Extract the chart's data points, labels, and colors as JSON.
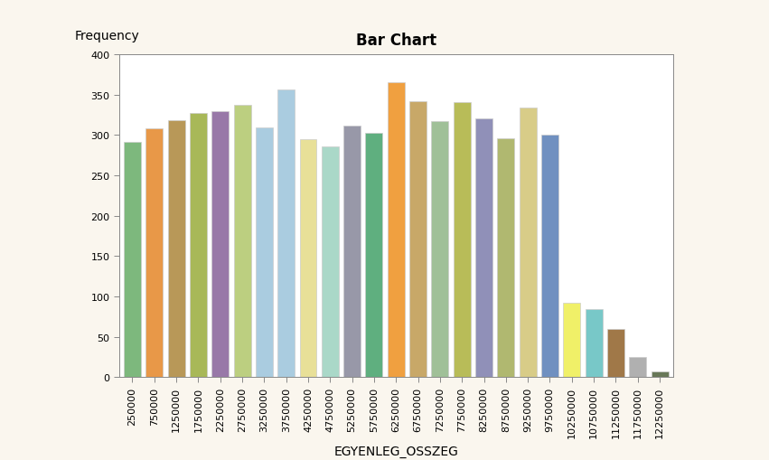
{
  "title": "Bar Chart",
  "xlabel": "EGYENLEG_OSSZEG",
  "ylabel": "Frequency",
  "background_color": "#faf6ee",
  "plot_bg_color": "#ffffff",
  "categories": [
    "250000",
    "750000",
    "1250000",
    "1750000",
    "2250000",
    "2750000",
    "3250000",
    "3750000",
    "4250000",
    "4750000",
    "5250000",
    "5750000",
    "6250000",
    "6750000",
    "7250000",
    "7750000",
    "8250000",
    "8750000",
    "9250000",
    "9750000",
    "10250000",
    "10750000",
    "11250000",
    "11750000",
    "12250000"
  ],
  "values": [
    291,
    308,
    318,
    327,
    330,
    338,
    309,
    357,
    295,
    286,
    312,
    303,
    365,
    342,
    317,
    341,
    321,
    296,
    334,
    301,
    92,
    84,
    60,
    25,
    7
  ],
  "bar_colors": [
    "#7db87d",
    "#e89848",
    "#b89858",
    "#a8b858",
    "#9878a8",
    "#bccf80",
    "#aacce0",
    "#aacce0",
    "#e8e098",
    "#aad8c8",
    "#9898a8",
    "#5faf7f",
    "#f0a040",
    "#c8a868",
    "#a0c098",
    "#b8bc58",
    "#9090b8",
    "#b0b870",
    "#d8cc88",
    "#7090c0",
    "#f0f068",
    "#78c8c8",
    "#a07848",
    "#b0b0b0",
    "#687858"
  ],
  "ylim": [
    0,
    400
  ],
  "yticks": [
    0,
    50,
    100,
    150,
    200,
    250,
    300,
    350,
    400
  ],
  "title_fontsize": 12,
  "axis_label_fontsize": 10,
  "tick_fontsize": 8
}
